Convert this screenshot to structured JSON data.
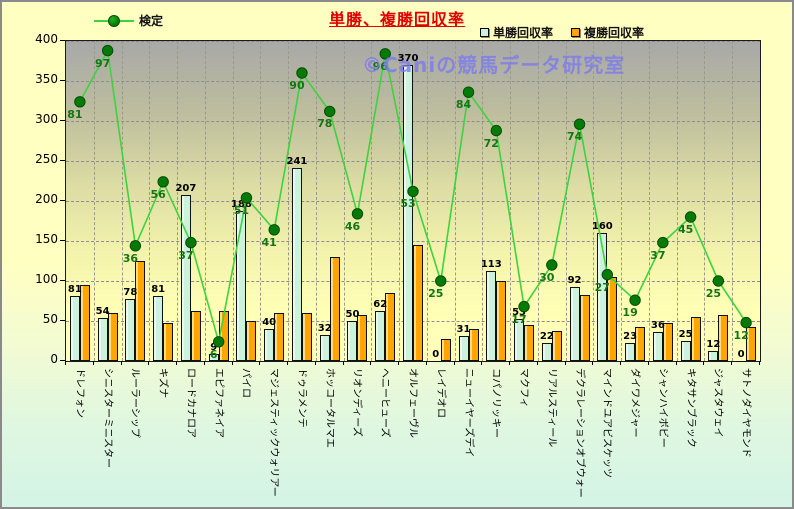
{
  "chart": {
    "title": "単勝、複勝回収率",
    "watermark": "©Caniの競馬データ研究室",
    "legend_line": "検定",
    "legend_items": [
      {
        "label": "単勝回収率",
        "color": "#CCF2DD"
      },
      {
        "label": "複勝回収率",
        "color": "#FFA500"
      }
    ]
  },
  "chart_data": {
    "type": "bar",
    "title": "単勝、複勝回収率",
    "categories": [
      "ドレフォン",
      "シニスターミニスター",
      "ルーラーシップ",
      "キズナ",
      "ロードカナロア",
      "エピファネイア",
      "パイロ",
      "マジェスティックウォリアー",
      "ドゥラメンテ",
      "ホッコータルマエ",
      "リオンディーズ",
      "ヘニーヒューズ",
      "オルフェーヴル",
      "レイデオロ",
      "ニューイヤーズデイ",
      "コパノリッキー",
      "マクフィ",
      "リアルスティール",
      "デクラレーションオブウォー",
      "マインドユアビスケッツ",
      "ダイワメジャー",
      "シャンハイボビー",
      "キタサンブラック",
      "ジャスタウェイ",
      "サトノダイヤモンド"
    ],
    "series": [
      {
        "name": "単勝回収率",
        "type": "bar",
        "color": "#CCF2DD",
        "values": [
          81,
          54,
          78,
          81,
          207,
          9,
          188,
          40,
          241,
          32,
          50,
          62,
          370,
          0,
          31,
          113,
          53,
          22,
          92,
          160,
          23,
          36,
          25,
          12,
          0
        ],
        "labeled": true
      },
      {
        "name": "複勝回収率",
        "type": "bar",
        "color": "#FFA500",
        "values": [
          95,
          60,
          125,
          48,
          63,
          62,
          50,
          60,
          60,
          130,
          57,
          85,
          145,
          27,
          40,
          100,
          45,
          38,
          83,
          105,
          42,
          48,
          55,
          57,
          42
        ],
        "labeled": false
      },
      {
        "name": "検定",
        "type": "line",
        "color": "#3FD23F",
        "marker_color": "#067A06",
        "values": [
          81,
          97,
          36,
          56,
          37,
          6,
          51,
          41,
          90,
          78,
          46,
          96,
          53,
          25,
          84,
          72,
          17,
          30,
          74,
          27,
          19,
          37,
          45,
          25,
          12
        ],
        "labeled": true,
        "axis": "secondary"
      }
    ],
    "ylabel": "",
    "xlabel": "",
    "ylim": [
      0,
      400
    ],
    "ytick_step": 50,
    "yticks": [
      0,
      50,
      100,
      150,
      200,
      250,
      300,
      350,
      400
    ],
    "secondary_ylim": [
      0,
      100
    ],
    "grid": true,
    "legend_position": "top"
  }
}
